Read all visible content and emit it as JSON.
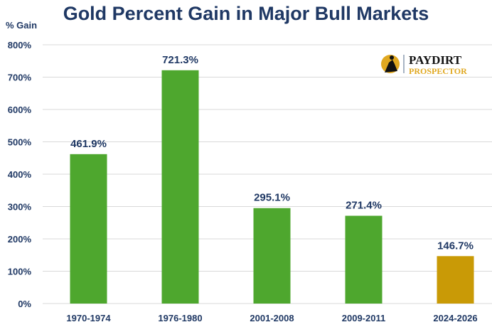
{
  "chart_data": {
    "type": "bar",
    "title": "Gold Percent Gain in Major Bull Markets",
    "ylabel": "% Gain",
    "xlabel": "",
    "categories": [
      "1970-1974",
      "1976-1980",
      "2001-2008",
      "2009-2011",
      "2024-2026"
    ],
    "values": [
      461.9,
      721.3,
      295.1,
      271.4,
      146.7
    ],
    "data_labels": [
      "461.9%",
      "721.3%",
      "295.1%",
      "271.4%",
      "146.7%"
    ],
    "colors": [
      "#4ea72e",
      "#4ea72e",
      "#4ea72e",
      "#4ea72e",
      "#c99a06"
    ],
    "ylim": [
      0,
      800
    ],
    "yticks": [
      "0%",
      "100%",
      "200%",
      "300%",
      "400%",
      "500%",
      "600%",
      "700%",
      "800%"
    ],
    "grid": true,
    "legend": "none"
  },
  "logo": {
    "line1": "PAYDIRT",
    "line2": "PROSPECTOR"
  }
}
